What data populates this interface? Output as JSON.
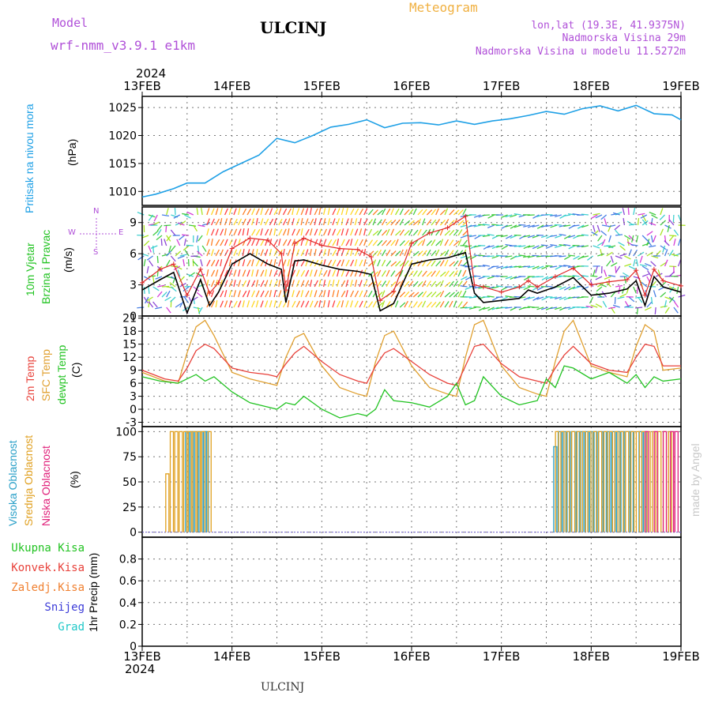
{
  "header": {
    "model_label": "Model",
    "model_name": "wrf-nmm_v3.9.1 e1km",
    "station": "ULCINJ",
    "meteogram": "Meteogram",
    "lonlat": "lon,lat (19.3E, 41.9375N)",
    "altitude": "Nadmorska Visina 29m",
    "model_altitude": "Nadmorska Visina u modelu 11.5272m"
  },
  "footer": {
    "station": "ULCINJ",
    "credit": "made by Angel"
  },
  "colors": {
    "pressure": "#1ea0e6",
    "wind_speed": "#000000",
    "gust": "#e02828",
    "temp2m": "#e8413a",
    "sfc_temp": "#e0a030",
    "dewpoint": "#22c322",
    "cloud_high": "#2aa0c8",
    "cloud_mid": "#e0a020",
    "cloud_low": "#e0207a",
    "precip_total": "#22c322",
    "precip_conv": "#e8413a",
    "precip_frozen": "#f08030",
    "snow": "#3c3cd8",
    "hail": "#20c8c8",
    "header_purple": "#b050d8",
    "header_orange": "#f0b040"
  },
  "chart_data": [
    {
      "type": "line",
      "panel": "pressure",
      "title": "Meteogram",
      "x_top_year": "2024",
      "x_bottom_year": "2024",
      "x_tick_labels": [
        "13FEB",
        "14FEB",
        "15FEB",
        "16FEB",
        "17FEB",
        "18FEB",
        "19FEB"
      ],
      "ylabel": [
        "Pritisak na nivou mora",
        "(hPa)"
      ],
      "ylim": [
        1007.5,
        1027
      ],
      "y_ticks": [
        1010,
        1015,
        1020,
        1025
      ],
      "grid": true,
      "series": [
        {
          "color": "pressure",
          "x": [
            0,
            0.15,
            0.35,
            0.5,
            0.7,
            0.9,
            1.1,
            1.3,
            1.5,
            1.7,
            1.9,
            2.1,
            2.3,
            2.5,
            2.7,
            2.9,
            3.1,
            3.3,
            3.5,
            3.7,
            3.9,
            4.1,
            4.3,
            4.5,
            4.7,
            4.9,
            5.1,
            5.3,
            5.5,
            5.7,
            5.9,
            6.0
          ],
          "y": [
            1009.0,
            1009.5,
            1010.5,
            1011.5,
            1011.5,
            1013.5,
            1015.0,
            1016.5,
            1019.5,
            1018.7,
            1020.0,
            1021.5,
            1022.0,
            1022.8,
            1021.4,
            1022.2,
            1022.3,
            1021.9,
            1022.6,
            1022.0,
            1022.6,
            1023.0,
            1023.6,
            1024.3,
            1023.8,
            1024.8,
            1025.3,
            1024.4,
            1025.4,
            1023.9,
            1023.7,
            1022.8
          ]
        }
      ]
    },
    {
      "type": "line",
      "panel": "wind",
      "ylabel": [
        "10m Vjetar",
        "Brzina i Pravac",
        "(m/s)"
      ],
      "compass": [
        "N",
        "W",
        "E",
        "S"
      ],
      "ylim": [
        0,
        10.5
      ],
      "y_ticks": [
        0,
        3,
        6,
        9
      ],
      "grid": true,
      "series": [
        {
          "name": "wind speed",
          "color": "wind_speed",
          "x": [
            0,
            0.2,
            0.35,
            0.5,
            0.65,
            0.75,
            0.85,
            1.0,
            1.2,
            1.4,
            1.55,
            1.6,
            1.7,
            1.8,
            2.0,
            2.2,
            2.4,
            2.55,
            2.65,
            2.8,
            3.0,
            3.2,
            3.4,
            3.6,
            3.7,
            3.8,
            4.0,
            4.2,
            4.3,
            4.4,
            4.6,
            4.8,
            5.0,
            5.2,
            5.4,
            5.5,
            5.6,
            5.7,
            5.8,
            6.0
          ],
          "y": [
            2.5,
            3.5,
            4.2,
            0.3,
            3.5,
            1.0,
            2.3,
            5.0,
            6.0,
            5.0,
            4.5,
            1.3,
            5.3,
            5.4,
            4.9,
            4.5,
            4.3,
            4.0,
            0.5,
            1.2,
            5.0,
            5.4,
            5.6,
            6.1,
            2.2,
            1.3,
            1.5,
            1.7,
            2.5,
            2.2,
            2.8,
            3.7,
            2.0,
            2.2,
            2.6,
            3.4,
            1.0,
            3.8,
            2.8,
            2.3
          ]
        },
        {
          "name": "gust",
          "color": "gust",
          "x": [
            0,
            0.2,
            0.35,
            0.5,
            0.65,
            0.75,
            0.85,
            1.0,
            1.2,
            1.4,
            1.55,
            1.6,
            1.7,
            1.8,
            2.0,
            2.2,
            2.4,
            2.55,
            2.65,
            2.8,
            3.0,
            3.2,
            3.4,
            3.6,
            3.7,
            3.8,
            4.0,
            4.2,
            4.3,
            4.4,
            4.6,
            4.8,
            5.0,
            5.2,
            5.4,
            5.5,
            5.6,
            5.7,
            5.8,
            6.0
          ],
          "y": [
            3.2,
            4.5,
            5.0,
            2.0,
            4.5,
            2.2,
            3.2,
            6.5,
            7.5,
            7.3,
            6.0,
            2.5,
            7.0,
            7.5,
            6.8,
            6.5,
            6.4,
            5.7,
            1.5,
            2.4,
            7.0,
            8.0,
            8.5,
            9.6,
            3.0,
            2.8,
            2.3,
            2.8,
            3.4,
            2.8,
            3.8,
            4.6,
            3.0,
            3.3,
            3.5,
            4.4,
            2.0,
            4.5,
            3.4,
            2.9
          ]
        }
      ]
    },
    {
      "type": "line",
      "panel": "temperature",
      "ylabel": [
        "2m Temp",
        "SFC Temp",
        "dewpt Temp",
        "(C)"
      ],
      "ylim": [
        -4,
        21.5
      ],
      "y_ticks": [
        -3,
        0,
        3,
        6,
        9,
        12,
        15,
        18,
        21
      ],
      "grid": true,
      "series": [
        {
          "name": "2m Temp",
          "color": "temp2m",
          "x": [
            0,
            0.25,
            0.4,
            0.5,
            0.6,
            0.7,
            0.8,
            1.0,
            1.2,
            1.4,
            1.5,
            1.6,
            1.7,
            1.8,
            2.0,
            2.2,
            2.4,
            2.5,
            2.6,
            2.7,
            2.8,
            3.0,
            3.2,
            3.4,
            3.5,
            3.6,
            3.7,
            3.8,
            4.0,
            4.2,
            4.4,
            4.5,
            4.6,
            4.7,
            4.8,
            5.0,
            5.2,
            5.4,
            5.5,
            5.6,
            5.7,
            5.8,
            6.0
          ],
          "y": [
            9.0,
            7.0,
            6.5,
            9.5,
            13.5,
            15.0,
            14.0,
            9.5,
            8.5,
            8.0,
            7.5,
            10.5,
            13.0,
            14.5,
            11.0,
            8.0,
            6.5,
            6.0,
            10.0,
            13.0,
            14.0,
            11.0,
            8.0,
            6.0,
            5.5,
            10.0,
            14.5,
            15.0,
            10.5,
            7.5,
            6.5,
            6.0,
            9.5,
            12.5,
            14.5,
            10.5,
            9.0,
            8.5,
            12.0,
            15.0,
            14.5,
            10.0,
            10.0
          ]
        },
        {
          "name": "SFC Temp",
          "color": "sfc_temp",
          "x": [
            0,
            0.25,
            0.4,
            0.5,
            0.6,
            0.7,
            0.8,
            1.0,
            1.2,
            1.4,
            1.5,
            1.6,
            1.7,
            1.8,
            2.0,
            2.2,
            2.4,
            2.5,
            2.6,
            2.7,
            2.8,
            3.0,
            3.2,
            3.4,
            3.5,
            3.6,
            3.7,
            3.8,
            4.0,
            4.2,
            4.4,
            4.5,
            4.6,
            4.7,
            4.8,
            5.0,
            5.2,
            5.4,
            5.5,
            5.6,
            5.7,
            5.8,
            6.0
          ],
          "y": [
            8.5,
            6.5,
            6.0,
            13.0,
            19.0,
            20.5,
            17.0,
            8.5,
            7.0,
            6.0,
            5.5,
            12.0,
            16.5,
            17.5,
            10.0,
            5.0,
            3.5,
            3.0,
            11.0,
            17.0,
            18.0,
            10.0,
            5.0,
            3.5,
            3.0,
            12.0,
            19.5,
            20.5,
            10.0,
            5.0,
            3.5,
            3.0,
            11.0,
            18.0,
            20.5,
            10.0,
            8.5,
            7.5,
            14.5,
            19.5,
            18.0,
            9.0,
            9.5
          ]
        },
        {
          "name": "dewpt Temp",
          "color": "dewpoint",
          "x": [
            0,
            0.2,
            0.4,
            0.5,
            0.6,
            0.7,
            0.8,
            1.0,
            1.2,
            1.4,
            1.5,
            1.6,
            1.7,
            1.8,
            2.0,
            2.2,
            2.4,
            2.5,
            2.6,
            2.7,
            2.8,
            3.0,
            3.2,
            3.4,
            3.5,
            3.6,
            3.7,
            3.8,
            4.0,
            4.2,
            4.4,
            4.5,
            4.6,
            4.7,
            4.8,
            5.0,
            5.2,
            5.4,
            5.5,
            5.6,
            5.7,
            5.8,
            6.0
          ],
          "y": [
            7.5,
            6.5,
            6.0,
            7.0,
            8.0,
            6.5,
            7.5,
            4.0,
            1.5,
            0.5,
            0.0,
            1.5,
            1.0,
            3.0,
            0.0,
            -2.0,
            -1.0,
            -1.5,
            0.0,
            4.5,
            2.0,
            1.5,
            0.5,
            3.0,
            6.0,
            1.0,
            2.0,
            7.5,
            3.0,
            1.0,
            2.0,
            7.0,
            5.0,
            10.0,
            9.5,
            7.0,
            8.5,
            6.0,
            8.0,
            5.0,
            7.5,
            6.5,
            7.0
          ]
        }
      ]
    },
    {
      "type": "bar",
      "panel": "cloud",
      "ylabel": [
        "Visoka Oblacnost",
        "Srednja Oblacnost",
        "Niska Oblacnost",
        "(%)"
      ],
      "ylim": [
        -5,
        105
      ],
      "y_ticks": [
        0,
        25,
        50,
        75,
        100
      ],
      "grid": true,
      "series": [
        {
          "name": "Visoka Oblacnost",
          "color": "cloud_high",
          "x": [
            0.5,
            0.55,
            0.6,
            0.65,
            0.7,
            0.72,
            4.6,
            4.65,
            4.7,
            4.75,
            4.8,
            4.85,
            4.9,
            4.95,
            5.0,
            5.05,
            5.1,
            5.15,
            5.2,
            5.25,
            5.3,
            5.35,
            5.4,
            5.45,
            5.55,
            5.6
          ],
          "values": [
            100,
            100,
            100,
            100,
            100,
            100,
            85,
            100,
            100,
            100,
            100,
            100,
            100,
            100,
            100,
            100,
            100,
            100,
            100,
            100,
            100,
            100,
            100,
            100,
            100,
            100
          ]
        },
        {
          "name": "Srednja Oblacnost",
          "color": "cloud_mid",
          "x": [
            0.28,
            0.33,
            0.38,
            0.43,
            0.48,
            0.53,
            0.58,
            0.63,
            0.68,
            0.75,
            4.62,
            4.68,
            4.74,
            4.8,
            4.86,
            4.92,
            4.98,
            5.04,
            5.1,
            5.16,
            5.22,
            5.28,
            5.34,
            5.4,
            5.46,
            5.52,
            5.58,
            5.64,
            5.7,
            5.76,
            5.82,
            5.88
          ],
          "values": [
            58,
            100,
            100,
            100,
            100,
            100,
            100,
            100,
            100,
            100,
            100,
            100,
            100,
            100,
            100,
            100,
            100,
            100,
            100,
            100,
            100,
            100,
            100,
            100,
            100,
            100,
            100,
            100,
            100,
            100,
            100,
            100
          ]
        },
        {
          "name": "Niska Oblacnost",
          "color": "cloud_low",
          "x": [
            5.62,
            5.72,
            5.82,
            5.9,
            5.95
          ],
          "values": [
            100,
            100,
            100,
            100,
            100
          ]
        }
      ]
    },
    {
      "type": "line",
      "panel": "precipitation",
      "ylabel": [
        "Ukupna Kisa",
        "Konvek.Kisa",
        "Zaledj.Kisa",
        "Snijeg",
        "Grad",
        "1hr Precip (mm)"
      ],
      "ylim": [
        0,
        1.0
      ],
      "y_ticks": [
        0,
        0.2,
        0.4,
        0.6,
        0.8
      ],
      "grid": true,
      "series": []
    }
  ]
}
